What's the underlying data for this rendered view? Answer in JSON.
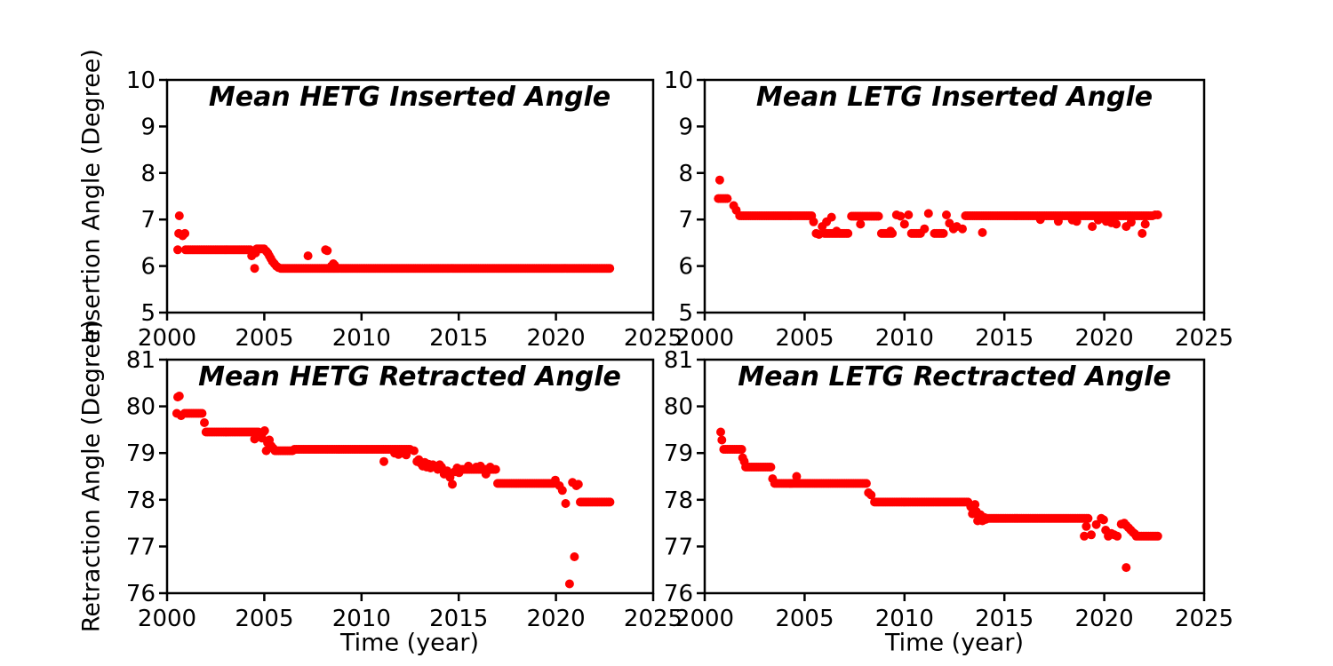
{
  "figure": {
    "background": "#ffffff",
    "axis_color": "#000000",
    "marker_color": "#ff0000",
    "xlabel": "Time (year)"
  },
  "chart_data": [
    {
      "type": "scatter",
      "id": "hetg-inserted",
      "title": "Mean HETG Inserted Angle",
      "xlabel": "Time (year)",
      "ylabel": "Insertion Angle (Degree)",
      "xlim": [
        2000,
        2025
      ],
      "ylim": [
        5,
        10
      ],
      "xticks": [
        2000,
        2005,
        2010,
        2015,
        2020,
        2025
      ],
      "yticks": [
        5,
        6,
        7,
        8,
        9,
        10
      ],
      "marker_color": "#ff0000",
      "run_step": 0.09,
      "runs": [
        [
          2000.95,
          2004.3,
          6.35
        ],
        [
          2004.62,
          2005.05,
          6.37
        ],
        [
          2005.85,
          2022.85,
          5.95
        ]
      ],
      "points": [
        [
          2000.55,
          6.35
        ],
        [
          2000.6,
          6.7
        ],
        [
          2000.63,
          7.08
        ],
        [
          2000.8,
          6.65
        ],
        [
          2000.85,
          6.68
        ],
        [
          2000.92,
          6.7
        ],
        [
          2004.35,
          6.22
        ],
        [
          2004.42,
          6.3
        ],
        [
          2004.5,
          5.95
        ],
        [
          2004.55,
          6.28
        ],
        [
          2005.1,
          6.32
        ],
        [
          2005.18,
          6.28
        ],
        [
          2005.26,
          6.22
        ],
        [
          2005.34,
          6.16
        ],
        [
          2005.42,
          6.1
        ],
        [
          2005.52,
          6.05
        ],
        [
          2005.62,
          6.0
        ],
        [
          2005.72,
          5.97
        ],
        [
          2007.25,
          6.22
        ],
        [
          2008.15,
          6.35
        ],
        [
          2008.24,
          6.33
        ],
        [
          2008.45,
          6.0
        ],
        [
          2008.55,
          6.05
        ],
        [
          2008.62,
          6.02
        ]
      ]
    },
    {
      "type": "scatter",
      "id": "letg-inserted",
      "title": "Mean LETG Inserted Angle",
      "xlabel": "Time (year)",
      "ylabel": "",
      "xlim": [
        2000,
        2025
      ],
      "ylim": [
        5,
        10
      ],
      "xticks": [
        2000,
        2005,
        2010,
        2015,
        2020,
        2025
      ],
      "yticks": [
        5,
        6,
        7,
        8,
        9,
        10
      ],
      "marker_color": "#ff0000",
      "run_step": 0.09,
      "runs": [
        [
          2000.68,
          2001.15,
          7.45
        ],
        [
          2001.75,
          2005.35,
          7.08
        ],
        [
          2006.0,
          2007.25,
          6.7
        ],
        [
          2007.35,
          2008.75,
          7.07
        ],
        [
          2008.85,
          2009.45,
          6.7
        ],
        [
          2010.35,
          2010.85,
          6.7
        ],
        [
          2011.5,
          2011.95,
          6.7
        ],
        [
          2013.05,
          2022.45,
          7.08
        ]
      ],
      "points": [
        [
          2000.75,
          7.85
        ],
        [
          2001.45,
          7.3
        ],
        [
          2001.58,
          7.2
        ],
        [
          2005.45,
          6.95
        ],
        [
          2005.58,
          6.7
        ],
        [
          2005.72,
          6.68
        ],
        [
          2005.88,
          6.85
        ],
        [
          2006.1,
          6.95
        ],
        [
          2006.35,
          7.05
        ],
        [
          2006.6,
          6.75
        ],
        [
          2007.8,
          6.9
        ],
        [
          2009.3,
          6.75
        ],
        [
          2009.6,
          7.1
        ],
        [
          2009.8,
          7.07
        ],
        [
          2010.0,
          6.9
        ],
        [
          2010.2,
          7.1
        ],
        [
          2011.0,
          6.8
        ],
        [
          2011.2,
          7.13
        ],
        [
          2012.1,
          7.1
        ],
        [
          2012.25,
          6.92
        ],
        [
          2012.45,
          6.8
        ],
        [
          2012.62,
          6.85
        ],
        [
          2012.9,
          6.8
        ],
        [
          2013.9,
          6.72
        ],
        [
          2016.8,
          7.0
        ],
        [
          2017.7,
          6.96
        ],
        [
          2018.4,
          6.99
        ],
        [
          2018.62,
          6.96
        ],
        [
          2019.4,
          6.85
        ],
        [
          2019.7,
          6.99
        ],
        [
          2020.1,
          6.96
        ],
        [
          2020.35,
          6.93
        ],
        [
          2020.6,
          6.9
        ],
        [
          2021.1,
          6.85
        ],
        [
          2021.35,
          6.94
        ],
        [
          2021.9,
          6.7
        ],
        [
          2022.05,
          6.9
        ],
        [
          2022.55,
          7.1
        ],
        [
          2022.68,
          7.1
        ]
      ]
    },
    {
      "type": "scatter",
      "id": "hetg-retracted",
      "title": "Mean HETG Retracted Angle",
      "xlabel": "Time (year)",
      "ylabel": "Retraction Angle (Degree)",
      "xlim": [
        2000,
        2025
      ],
      "ylim": [
        76,
        81
      ],
      "xticks": [
        2000,
        2005,
        2010,
        2015,
        2020,
        2025
      ],
      "yticks": [
        76,
        77,
        78,
        79,
        80,
        81
      ],
      "marker_color": "#ff0000",
      "run_step": 0.09,
      "runs": [
        [
          2000.9,
          2001.85,
          79.85
        ],
        [
          2002.0,
          2004.78,
          79.45
        ],
        [
          2005.55,
          2006.5,
          79.05
        ],
        [
          2006.55,
          2012.55,
          79.08
        ],
        [
          2015.1,
          2016.95,
          78.65
        ],
        [
          2017.0,
          2019.9,
          78.35
        ],
        [
          2021.25,
          2022.85,
          77.95
        ]
      ],
      "points": [
        [
          2000.5,
          79.85
        ],
        [
          2000.55,
          80.2
        ],
        [
          2000.63,
          80.22
        ],
        [
          2000.72,
          79.8
        ],
        [
          2001.92,
          79.65
        ],
        [
          2004.5,
          79.3
        ],
        [
          2004.88,
          79.32
        ],
        [
          2004.96,
          79.45
        ],
        [
          2005.02,
          79.48
        ],
        [
          2005.1,
          79.05
        ],
        [
          2005.17,
          79.22
        ],
        [
          2005.26,
          79.28
        ],
        [
          2005.36,
          79.15
        ],
        [
          2005.46,
          79.1
        ],
        [
          2011.15,
          78.82
        ],
        [
          2011.7,
          79.0
        ],
        [
          2011.9,
          78.97
        ],
        [
          2012.1,
          79.0
        ],
        [
          2012.3,
          78.96
        ],
        [
          2012.7,
          79.05
        ],
        [
          2012.85,
          78.82
        ],
        [
          2012.95,
          78.86
        ],
        [
          2013.05,
          78.78
        ],
        [
          2013.15,
          78.72
        ],
        [
          2013.25,
          78.8
        ],
        [
          2013.35,
          78.7
        ],
        [
          2013.45,
          78.76
        ],
        [
          2013.55,
          78.68
        ],
        [
          2013.67,
          78.75
        ],
        [
          2013.8,
          78.72
        ],
        [
          2013.92,
          78.65
        ],
        [
          2014.02,
          78.75
        ],
        [
          2014.12,
          78.7
        ],
        [
          2014.25,
          78.55
        ],
        [
          2014.4,
          78.62
        ],
        [
          2014.55,
          78.48
        ],
        [
          2014.67,
          78.33
        ],
        [
          2014.8,
          78.6
        ],
        [
          2014.92,
          78.68
        ],
        [
          2015.02,
          78.58
        ],
        [
          2015.5,
          78.72
        ],
        [
          2015.9,
          78.7
        ],
        [
          2016.12,
          78.72
        ],
        [
          2016.4,
          78.55
        ],
        [
          2016.62,
          78.7
        ],
        [
          2019.97,
          78.42
        ],
        [
          2020.18,
          78.3
        ],
        [
          2020.33,
          78.2
        ],
        [
          2020.5,
          77.92
        ],
        [
          2020.7,
          76.2
        ],
        [
          2020.95,
          76.78
        ],
        [
          2020.85,
          78.37
        ],
        [
          2021.05,
          78.3
        ],
        [
          2021.15,
          78.33
        ]
      ]
    },
    {
      "type": "scatter",
      "id": "letg-rectracted",
      "title": "Mean LETG Rectracted Angle",
      "xlabel": "Time (year)",
      "ylabel": "",
      "xlim": [
        2000,
        2025
      ],
      "ylim": [
        76,
        81
      ],
      "xticks": [
        2000,
        2005,
        2010,
        2015,
        2020,
        2025
      ],
      "yticks": [
        76,
        77,
        78,
        79,
        80,
        81
      ],
      "marker_color": "#ff0000",
      "run_step": 0.09,
      "runs": [
        [
          2000.95,
          2001.85,
          79.08
        ],
        [
          2002.05,
          2003.35,
          78.7
        ],
        [
          2003.5,
          2008.1,
          78.35
        ],
        [
          2008.5,
          2013.25,
          77.95
        ],
        [
          2014.15,
          2019.25,
          77.6
        ],
        [
          2021.6,
          2022.75,
          77.22
        ]
      ],
      "points": [
        [
          2000.8,
          79.45
        ],
        [
          2000.86,
          79.28
        ],
        [
          2001.9,
          78.9
        ],
        [
          2001.98,
          78.82
        ],
        [
          2003.4,
          78.45
        ],
        [
          2004.6,
          78.5
        ],
        [
          2008.2,
          78.15
        ],
        [
          2008.33,
          78.1
        ],
        [
          2013.32,
          77.85
        ],
        [
          2013.4,
          77.7
        ],
        [
          2013.46,
          77.82
        ],
        [
          2013.53,
          77.9
        ],
        [
          2013.6,
          77.75
        ],
        [
          2013.66,
          77.55
        ],
        [
          2013.73,
          77.62
        ],
        [
          2013.8,
          77.68
        ],
        [
          2013.9,
          77.55
        ],
        [
          2014.0,
          77.62
        ],
        [
          2014.07,
          77.58
        ],
        [
          2019.0,
          77.22
        ],
        [
          2019.1,
          77.43
        ],
        [
          2019.35,
          77.25
        ],
        [
          2019.6,
          77.47
        ],
        [
          2019.85,
          77.6
        ],
        [
          2019.97,
          77.57
        ],
        [
          2020.07,
          77.35
        ],
        [
          2020.2,
          77.22
        ],
        [
          2020.35,
          77.28
        ],
        [
          2020.5,
          77.25
        ],
        [
          2020.65,
          77.22
        ],
        [
          2020.85,
          77.48
        ],
        [
          2021.0,
          77.5
        ],
        [
          2021.1,
          77.45
        ],
        [
          2021.22,
          77.4
        ],
        [
          2021.33,
          77.35
        ],
        [
          2021.44,
          77.3
        ],
        [
          2021.53,
          77.27
        ],
        [
          2021.1,
          76.55
        ]
      ]
    }
  ]
}
